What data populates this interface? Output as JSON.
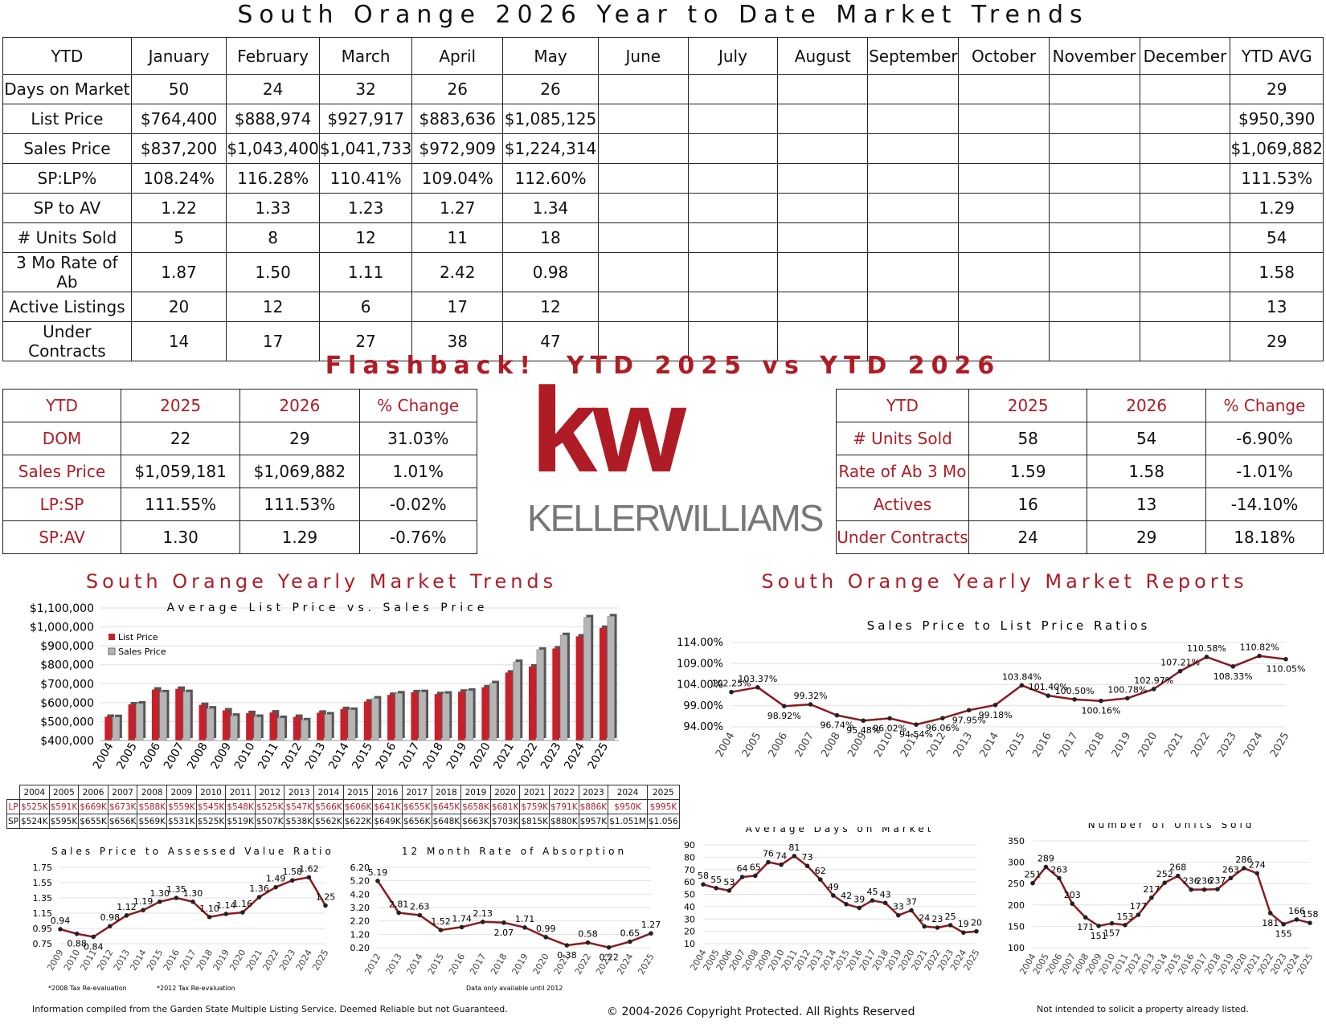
{
  "title": "South Orange 2026 Year to Date Market Trends",
  "main_table": {
    "header": [
      "YTD",
      "January",
      "February",
      "March",
      "April",
      "May",
      "June",
      "July",
      "August",
      "September",
      "October",
      "November",
      "December",
      "YTD AVG"
    ],
    "rows": [
      {
        "label": "Days on Market",
        "values": [
          "50",
          "24",
          "32",
          "26",
          "26",
          "",
          "",
          "",
          "",
          "",
          "",
          ""
        ],
        "avg": "29"
      },
      {
        "label": "List Price",
        "values": [
          "$764,400",
          "$888,974",
          "$927,917",
          "$883,636",
          "$1,085,125",
          "",
          "",
          "",
          "",
          "",
          "",
          ""
        ],
        "avg": "$950,390"
      },
      {
        "label": "Sales Price",
        "values": [
          "$837,200",
          "$1,043,400",
          "$1,041,733",
          "$972,909",
          "$1,224,314",
          "",
          "",
          "",
          "",
          "",
          "",
          ""
        ],
        "avg": "$1,069,882"
      },
      {
        "label": "SP:LP%",
        "values": [
          "108.24%",
          "116.28%",
          "110.41%",
          "109.04%",
          "112.60%",
          "",
          "",
          "",
          "",
          "",
          "",
          ""
        ],
        "avg": "111.53%"
      },
      {
        "label": "SP to AV",
        "values": [
          "1.22",
          "1.33",
          "1.23",
          "1.27",
          "1.34",
          "",
          "",
          "",
          "",
          "",
          "",
          ""
        ],
        "avg": "1.29"
      },
      {
        "label": "# Units Sold",
        "values": [
          "5",
          "8",
          "12",
          "11",
          "18",
          "",
          "",
          "",
          "",
          "",
          "",
          ""
        ],
        "avg": "54"
      },
      {
        "label": "3 Mo Rate of Ab",
        "values": [
          "1.87",
          "1.50",
          "1.11",
          "2.42",
          "0.98",
          "",
          "",
          "",
          "",
          "",
          "",
          ""
        ],
        "avg": "1.58"
      },
      {
        "label": "Active Listings",
        "values": [
          "20",
          "12",
          "6",
          "17",
          "12",
          "",
          "",
          "",
          "",
          "",
          "",
          ""
        ],
        "avg": "13"
      },
      {
        "label": "Under Contracts",
        "values": [
          "14",
          "17",
          "27",
          "38",
          "47",
          "",
          "",
          "",
          "",
          "",
          "",
          ""
        ],
        "avg": "29"
      }
    ]
  },
  "flashback_title": "Flashback!  YTD 2025 vs YTD 2026",
  "flashback_left": {
    "header": [
      "YTD",
      "2025",
      "2026",
      "% Change"
    ],
    "rows": [
      [
        "DOM",
        "22",
        "29",
        "31.03%"
      ],
      [
        "Sales Price",
        "$1,059,181",
        "$1,069,882",
        "1.01%"
      ],
      [
        "LP:SP",
        "111.55%",
        "111.53%",
        "-0.02%"
      ],
      [
        "SP:AV",
        "1.30",
        "1.29",
        "-0.76%"
      ]
    ]
  },
  "flashback_right": {
    "header": [
      "YTD",
      "2025",
      "2026",
      "% Change"
    ],
    "rows": [
      [
        "# Units Sold",
        "58",
        "54",
        "-6.90%"
      ],
      [
        "Rate of Ab 3 Mo",
        "1.59",
        "1.58",
        "-1.01%"
      ],
      [
        "Actives",
        "16",
        "13",
        "-14.10%"
      ],
      [
        "Under Contracts",
        "24",
        "29",
        "18.18%"
      ]
    ]
  },
  "logo": {
    "kw": "kw",
    "brand": "KELLERWILLIAMS"
  },
  "section_left_title": "South Orange Yearly Market Trends",
  "section_right_title": "South Orange Yearly Market Reports",
  "colors": {
    "accent": "#b01c26",
    "line": "#8b1a1f",
    "bar_gray": "#b5b5b5"
  },
  "chart_data": [
    {
      "type": "bar",
      "title": "Average List Price vs. Sales Price",
      "categories": [
        "2004",
        "2005",
        "2006",
        "2007",
        "2008",
        "2009",
        "2010",
        "2011",
        "2012",
        "2013",
        "2014",
        "2015",
        "2016",
        "2017",
        "2018",
        "2019",
        "2020",
        "2021",
        "2022",
        "2023",
        "2024",
        "2025"
      ],
      "series": [
        {
          "name": "List Price",
          "values": [
            525,
            591,
            669,
            673,
            588,
            559,
            545,
            548,
            525,
            547,
            566,
            606,
            641,
            655,
            645,
            658,
            681,
            759,
            791,
            886,
            950,
            995
          ]
        },
        {
          "name": "Sales Price",
          "values": [
            524,
            595,
            655,
            656,
            569,
            531,
            525,
            519,
            507,
            538,
            562,
            622,
            649,
            656,
            648,
            663,
            703,
            815,
            880,
            957,
            1051,
            1056
          ]
        }
      ],
      "y_ticks": [
        "$400,000",
        "$500,000",
        "$600,000",
        "$700,000",
        "$800,000",
        "$900,000",
        "$1,000,000",
        "$1,100,000"
      ],
      "ylim": [
        400,
        1100
      ],
      "legend": "top-left",
      "table": {
        "years": [
          "2004",
          "2005",
          "2006",
          "2007",
          "2008",
          "2009",
          "2010",
          "2011",
          "2012",
          "2013",
          "2014",
          "2015",
          "2016",
          "2017",
          "2018",
          "2019",
          "2020",
          "2021",
          "2022",
          "2023",
          "2024",
          "2025"
        ],
        "lp": [
          "$525K",
          "$591K",
          "$669K",
          "$673K",
          "$588K",
          "$559K",
          "$545K",
          "$548K",
          "$525K",
          "$547K",
          "$566K",
          "$606K",
          "$641K",
          "$655K",
          "$645K",
          "$658K",
          "$681K",
          "$759K",
          "$791K",
          "$886K",
          "$950K",
          "$995K"
        ],
        "sp": [
          "$524K",
          "$595K",
          "$655K",
          "$656K",
          "$569K",
          "$531K",
          "$525K",
          "$519K",
          "$507K",
          "$538K",
          "$562K",
          "$622K",
          "$649K",
          "$656K",
          "$648K",
          "$663K",
          "$703K",
          "$815K",
          "$880K",
          "$957K",
          "$1.051M",
          "$1.056"
        ],
        "lp_label": "LP",
        "sp_label": "SP"
      }
    },
    {
      "type": "line",
      "title": "Sales Price to List Price Ratios",
      "x": [
        "2004",
        "2005",
        "2006",
        "2007",
        "2008",
        "2009",
        "2010",
        "2011",
        "2012",
        "2013",
        "2014",
        "2015",
        "2016",
        "2017",
        "2018",
        "2019",
        "2020",
        "2021",
        "2022",
        "2023",
        "2024",
        "2025"
      ],
      "values": [
        102.25,
        103.37,
        98.92,
        99.32,
        96.74,
        95.48,
        96.02,
        94.54,
        96.06,
        97.95,
        99.18,
        103.84,
        101.4,
        100.5,
        100.16,
        100.78,
        102.97,
        107.21,
        110.58,
        108.33,
        110.82,
        110.05
      ],
      "labels": [
        "102.25%",
        "103.37%",
        "98.92%",
        "99.32%",
        "96.74%",
        "95.48%",
        "96.02%",
        "94.54%",
        "96.06%",
        "97.95%",
        "99.18%",
        "103.84%",
        "101.40%",
        "100.50%",
        "100.16%",
        "100.78%",
        "102.97%",
        "107.21%",
        "110.58%",
        "108.33%",
        "110.82%",
        "110.05%"
      ],
      "y_ticks": [
        "94.00%",
        "99.00%",
        "104.00%",
        "109.00%",
        "114.00%"
      ],
      "ylim": [
        94,
        114
      ]
    },
    {
      "type": "line",
      "title": "Sales Price to Assessed Value Ratio",
      "x": [
        "2009",
        "2010",
        "2011",
        "2012",
        "2013",
        "2014",
        "2015",
        "2016",
        "2017",
        "2018",
        "2019",
        "2020",
        "2021",
        "2022",
        "2023",
        "2024",
        "2025"
      ],
      "values": [
        0.94,
        0.88,
        0.84,
        0.98,
        1.12,
        1.19,
        1.3,
        1.35,
        1.3,
        1.1,
        1.14,
        1.16,
        1.36,
        1.49,
        1.58,
        1.62,
        1.25
      ],
      "labels": [
        "0.94",
        "0.88",
        "0.84",
        "0.98",
        "1.12",
        "1.19",
        "1.30",
        "1.35",
        "1.30",
        "1.10",
        "1.14",
        "1.16",
        "1.36",
        "1.49",
        "1.58",
        "1.62",
        "1.25"
      ],
      "y_ticks": [
        "0.75",
        "0.95",
        "1.15",
        "1.35",
        "1.55",
        "1.75"
      ],
      "ylim": [
        0.75,
        1.75
      ],
      "notes": [
        "*2008 Tax Re-evaluation",
        "*2012 Tax Re-evaluation"
      ]
    },
    {
      "type": "line",
      "title": "12 Month Rate of Absorption",
      "x": [
        "2012",
        "2013",
        "2014",
        "2015",
        "2016",
        "2017",
        "2018",
        "2019",
        "2020",
        "2021",
        "2022",
        "2023",
        "2024",
        "2025"
      ],
      "values": [
        5.19,
        2.81,
        2.63,
        1.52,
        1.74,
        2.13,
        2.07,
        1.71,
        0.99,
        0.38,
        0.58,
        0.22,
        0.65,
        1.27
      ],
      "labels": [
        "5.19",
        "2.81",
        "2.63",
        "1.52",
        "1.74",
        "2.13",
        "2.07",
        "1.71",
        "0.99",
        "0.38",
        "0.58",
        "0.22",
        "0.65",
        "1.27"
      ],
      "y_ticks": [
        "0.20",
        "1.20",
        "2.20",
        "3.20",
        "4.20",
        "5.20",
        "6.20"
      ],
      "ylim": [
        0.2,
        6.2
      ],
      "notes": [
        "Data only available until 2012"
      ]
    },
    {
      "type": "line",
      "title": "Average Days on Market",
      "x": [
        "2004",
        "2005",
        "2006",
        "2007",
        "2008",
        "2009",
        "2010",
        "2011",
        "2012",
        "2013",
        "2014",
        "2015",
        "2016",
        "2017",
        "2018",
        "2019",
        "2020",
        "2021",
        "2022",
        "2023",
        "2024",
        "2025"
      ],
      "values": [
        58,
        55,
        53,
        64,
        65,
        76,
        74,
        81,
        73,
        62,
        49,
        42,
        39,
        45,
        43,
        33,
        37,
        24,
        23,
        25,
        19,
        20
      ],
      "labels": [
        "58",
        "55",
        "53",
        "64",
        "65",
        "76",
        "74",
        "81",
        "73",
        "62",
        "49",
        "42",
        "39",
        "45",
        "43",
        "33",
        "37",
        "24",
        "23",
        "25",
        "19",
        "20"
      ],
      "y_ticks": [
        "10",
        "20",
        "30",
        "40",
        "50",
        "60",
        "70",
        "80",
        "90"
      ],
      "ylim": [
        10,
        90
      ]
    },
    {
      "type": "line",
      "title": "Number of Units Sold",
      "x": [
        "2004",
        "2005",
        "2006",
        "2007",
        "2008",
        "2009",
        "2010",
        "2011",
        "2012",
        "2013",
        "2014",
        "2015",
        "2016",
        "2017",
        "2018",
        "2019",
        "2020",
        "2021",
        "2022",
        "2023",
        "2024",
        "2025"
      ],
      "values": [
        251,
        289,
        263,
        203,
        171,
        151,
        157,
        153,
        177,
        217,
        252,
        268,
        236,
        236,
        237,
        263,
        286,
        274,
        181,
        155,
        166,
        158
      ],
      "labels": [
        "251",
        "289",
        "263",
        "203",
        "171",
        "151",
        "157",
        "153",
        "177",
        "217",
        "252",
        "268",
        "236",
        "236",
        "237",
        "263",
        "286",
        "274",
        "181",
        "155",
        "166",
        "158"
      ],
      "y_ticks": [
        "100",
        "150",
        "200",
        "250",
        "300",
        "350"
      ],
      "ylim": [
        100,
        350
      ]
    }
  ],
  "footer": {
    "left": "Information compiled from the Garden State Multiple Listing Service.  Deemed Reliable but not Guaranteed.",
    "center": "© 2004-2026 Copyright Protected.  All Rights Reserved",
    "right": "Not intended to solicit a property already listed."
  }
}
